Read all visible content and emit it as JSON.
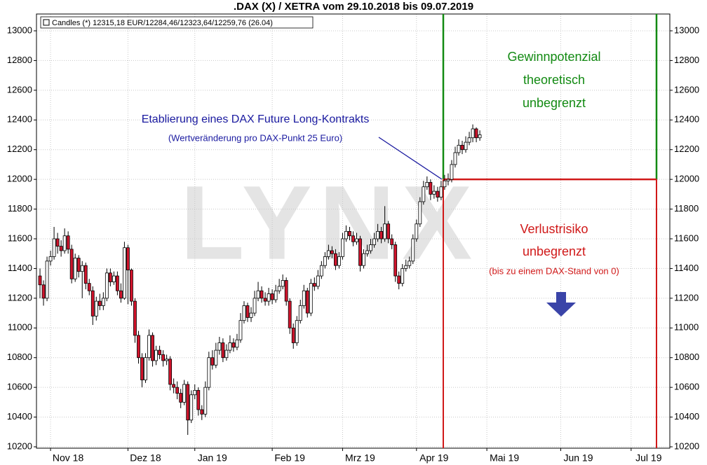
{
  "chart_data": {
    "type": "candlestick",
    "title": ".DAX (X) / XETRA vom 29.10.2018 bis 09.07.2019",
    "legend_label": "Candles (*) 12315,18 EUR/12284,46/12323,64/12259,76 (26.04)",
    "watermark": "LYNX",
    "up_color": "#ffffff",
    "down_color": "#d0142c",
    "ylim": [
      10200,
      13000
    ],
    "yticks": [
      10200,
      10400,
      10600,
      10800,
      11000,
      11200,
      11400,
      11600,
      11800,
      12000,
      12200,
      12400,
      12600,
      12800,
      13000
    ],
    "xlim": [
      -1,
      179
    ],
    "xticks": [
      {
        "value": 3,
        "label": "Nov 18"
      },
      {
        "value": 25,
        "label": "Dez 18"
      },
      {
        "value": 44,
        "label": "Jan 19"
      },
      {
        "value": 66,
        "label": "Feb 19"
      },
      {
        "value": 86,
        "label": "Mrz 19"
      },
      {
        "value": 107,
        "label": "Apr 19"
      },
      {
        "value": 127,
        "label": "Mai 19"
      },
      {
        "value": 148,
        "label": "Jun 19"
      },
      {
        "value": 168,
        "label": "Jul 19"
      }
    ],
    "grid": true,
    "entry_level": 12000,
    "entry_text": [
      "Etablierung eines DAX Future Long-Kontrakts",
      "(Wertveränderung pro DAX-Punkt 25 Euro)"
    ],
    "profit_text": [
      "Gewinnpotenzial",
      "theoretisch",
      "unbegrenzt"
    ],
    "loss_text": [
      "Verlustrisiko",
      "unbegrenzt",
      "(bis zu einem DAX-Stand von 0)"
    ],
    "open": [
      11350,
      11290,
      11200,
      11450,
      11480,
      11600,
      11550,
      11520,
      11620,
      11530,
      11330,
      11470,
      11380,
      11420,
      11300,
      11250,
      11080,
      11180,
      11150,
      11200,
      11370,
      11310,
      11350,
      11250,
      11200,
      11540,
      11390,
      11180,
      10950,
      10800,
      10650,
      10800,
      10950,
      10780,
      10850,
      10820,
      10780,
      10790,
      10620,
      10600,
      10560,
      10500,
      10620,
      10380,
      10550,
      10580,
      10450,
      10420,
      10600,
      10800,
      10750,
      10850,
      10900,
      10800,
      10850,
      10900,
      10870,
      10920,
      11050,
      11150,
      11070,
      11100,
      11200,
      11250,
      11200,
      11180,
      11230,
      11190,
      11250,
      11280,
      11320,
      11180,
      11000,
      10900,
      11050,
      11150,
      11250,
      11100,
      11300,
      11280,
      11350,
      11420,
      11480,
      11520,
      11500,
      11420,
      11480,
      11600,
      11650,
      11620,
      11580,
      11600,
      11420,
      11500,
      11520,
      11560,
      11600,
      11650,
      11600,
      11700,
      11600,
      11560,
      11350,
      11300,
      11400,
      11420,
      11450,
      11600,
      11700,
      11850,
      11950,
      11980,
      11900,
      11920,
      11880,
      11950,
      11990,
      12000,
      12100,
      12180,
      12230,
      12200,
      12250,
      12280,
      12340,
      12280
    ],
    "high": [
      11400,
      11320,
      11480,
      11520,
      11680,
      11640,
      11590,
      11670,
      11650,
      11560,
      11500,
      11490,
      11450,
      11440,
      11330,
      11280,
      11210,
      11230,
      11240,
      11400,
      11400,
      11380,
      11380,
      11300,
      11580,
      11560,
      11400,
      11200,
      10980,
      10830,
      10830,
      10990,
      10970,
      10880,
      10880,
      10850,
      10820,
      10810,
      10660,
      10640,
      10590,
      10650,
      10640,
      10580,
      10620,
      10600,
      10480,
      10640,
      10840,
      10850,
      10900,
      10940,
      10930,
      10890,
      10950,
      10930,
      10960,
      11100,
      11180,
      11170,
      11140,
      11250,
      11310,
      11280,
      11240,
      11270,
      11260,
      11290,
      11330,
      11360,
      11340,
      11200,
      11030,
      11080,
      11190,
      11290,
      11270,
      11330,
      11340,
      11390,
      11450,
      11510,
      11560,
      11550,
      11530,
      11510,
      11640,
      11690,
      11680,
      11650,
      11640,
      11620,
      11530,
      11560,
      11600,
      11640,
      11700,
      11680,
      11820,
      11720,
      11630,
      11580,
      11380,
      11430,
      11460,
      11480,
      11630,
      11730,
      11880,
      11990,
      12020,
      12000,
      11960,
      11950,
      11990,
      12030,
      12040,
      12130,
      12220,
      12270,
      12260,
      12290,
      12320,
      12370,
      12350,
      12330
    ],
    "low": [
      11200,
      11150,
      11180,
      11420,
      11460,
      11500,
      11480,
      11500,
      11500,
      11300,
      11310,
      11340,
      11200,
      11260,
      11220,
      11020,
      11050,
      11120,
      11120,
      11180,
      11280,
      11290,
      11220,
      11170,
      11190,
      11160,
      11150,
      10900,
      10760,
      10600,
      10630,
      10780,
      10740,
      10750,
      10790,
      10740,
      10750,
      10580,
      10560,
      10520,
      10460,
      10480,
      10280,
      10360,
      10520,
      10410,
      10380,
      10400,
      10580,
      10720,
      10730,
      10820,
      10770,
      10780,
      10830,
      10840,
      10850,
      10900,
      11030,
      11040,
      11040,
      11080,
      11180,
      11170,
      11150,
      11150,
      11160,
      11170,
      11230,
      11260,
      11150,
      10960,
      10860,
      10880,
      11030,
      11130,
      11070,
      11080,
      11250,
      11260,
      11330,
      11400,
      11460,
      11470,
      11390,
      11400,
      11460,
      11580,
      11590,
      11550,
      11560,
      11380,
      11400,
      11480,
      11500,
      11540,
      11580,
      11570,
      11580,
      11570,
      11530,
      11310,
      11260,
      11280,
      11380,
      11400,
      11430,
      11580,
      11680,
      11830,
      11930,
      11860,
      11870,
      11850,
      11860,
      11930,
      11960,
      11980,
      12080,
      12160,
      12170,
      12180,
      12230,
      12250,
      12250,
      12260
    ],
    "close": [
      11290,
      11200,
      11450,
      11480,
      11600,
      11550,
      11520,
      11620,
      11530,
      11330,
      11470,
      11380,
      11420,
      11300,
      11250,
      11080,
      11180,
      11150,
      11200,
      11370,
      11310,
      11350,
      11250,
      11200,
      11540,
      11390,
      11180,
      10950,
      10800,
      10650,
      10800,
      10950,
      10780,
      10850,
      10820,
      10780,
      10790,
      10620,
      10600,
      10560,
      10500,
      10620,
      10380,
      10550,
      10580,
      10450,
      10420,
      10600,
      10800,
      10750,
      10850,
      10900,
      10800,
      10850,
      10900,
      10870,
      10920,
      11050,
      11150,
      11070,
      11100,
      11200,
      11250,
      11200,
      11180,
      11230,
      11190,
      11250,
      11280,
      11320,
      11180,
      11000,
      10900,
      11050,
      11150,
      11250,
      11100,
      11300,
      11280,
      11350,
      11420,
      11480,
      11520,
      11500,
      11420,
      11480,
      11600,
      11650,
      11620,
      11580,
      11600,
      11420,
      11500,
      11520,
      11560,
      11600,
      11650,
      11600,
      11700,
      11600,
      11560,
      11350,
      11300,
      11400,
      11420,
      11450,
      11600,
      11700,
      11850,
      11950,
      11980,
      11900,
      11920,
      11880,
      11950,
      11990,
      12000,
      12100,
      12180,
      12230,
      12200,
      12250,
      12280,
      12340,
      12280,
      12300
    ]
  }
}
